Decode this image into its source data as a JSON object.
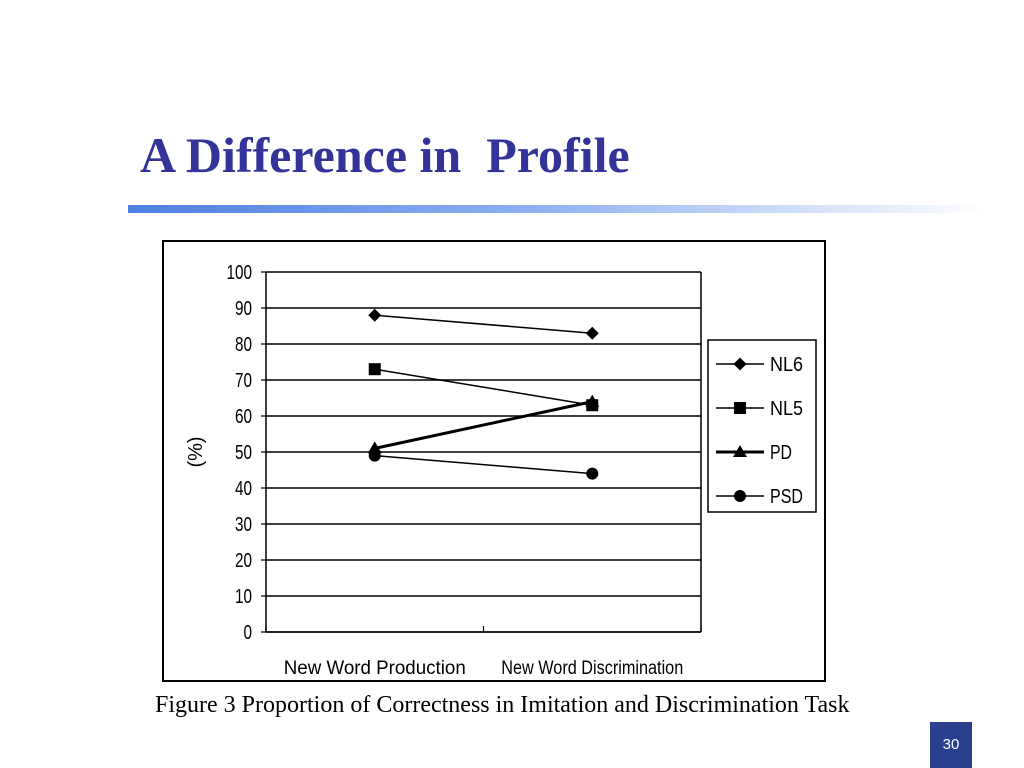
{
  "slide": {
    "title": "A Difference in  Profile",
    "caption": "Figure 3 Proportion of Correctness in Imitation and Discrimination Task",
    "page_number": "30"
  },
  "colors": {
    "title": "#33339a",
    "accent_bar": "#4f7fe0",
    "page_badge": "#2b3f8f",
    "series": "#000000"
  },
  "chart_data": {
    "type": "line",
    "title": "",
    "xlabel": "",
    "ylabel": "(%)",
    "ylim": [
      0,
      100
    ],
    "yticks": [
      0,
      10,
      20,
      30,
      40,
      50,
      60,
      70,
      80,
      90,
      100
    ],
    "categories": [
      "New Word Production",
      "New Word Discrimination"
    ],
    "grid": true,
    "legend_position": "right",
    "series": [
      {
        "name": "NL6",
        "values": [
          88,
          83
        ],
        "marker": "diamond"
      },
      {
        "name": "NL5",
        "values": [
          73,
          63
        ],
        "marker": "square"
      },
      {
        "name": "PD",
        "values": [
          51,
          64
        ],
        "marker": "triangle",
        "bold": true
      },
      {
        "name": "PSD",
        "values": [
          49,
          44
        ],
        "marker": "circle"
      }
    ]
  }
}
